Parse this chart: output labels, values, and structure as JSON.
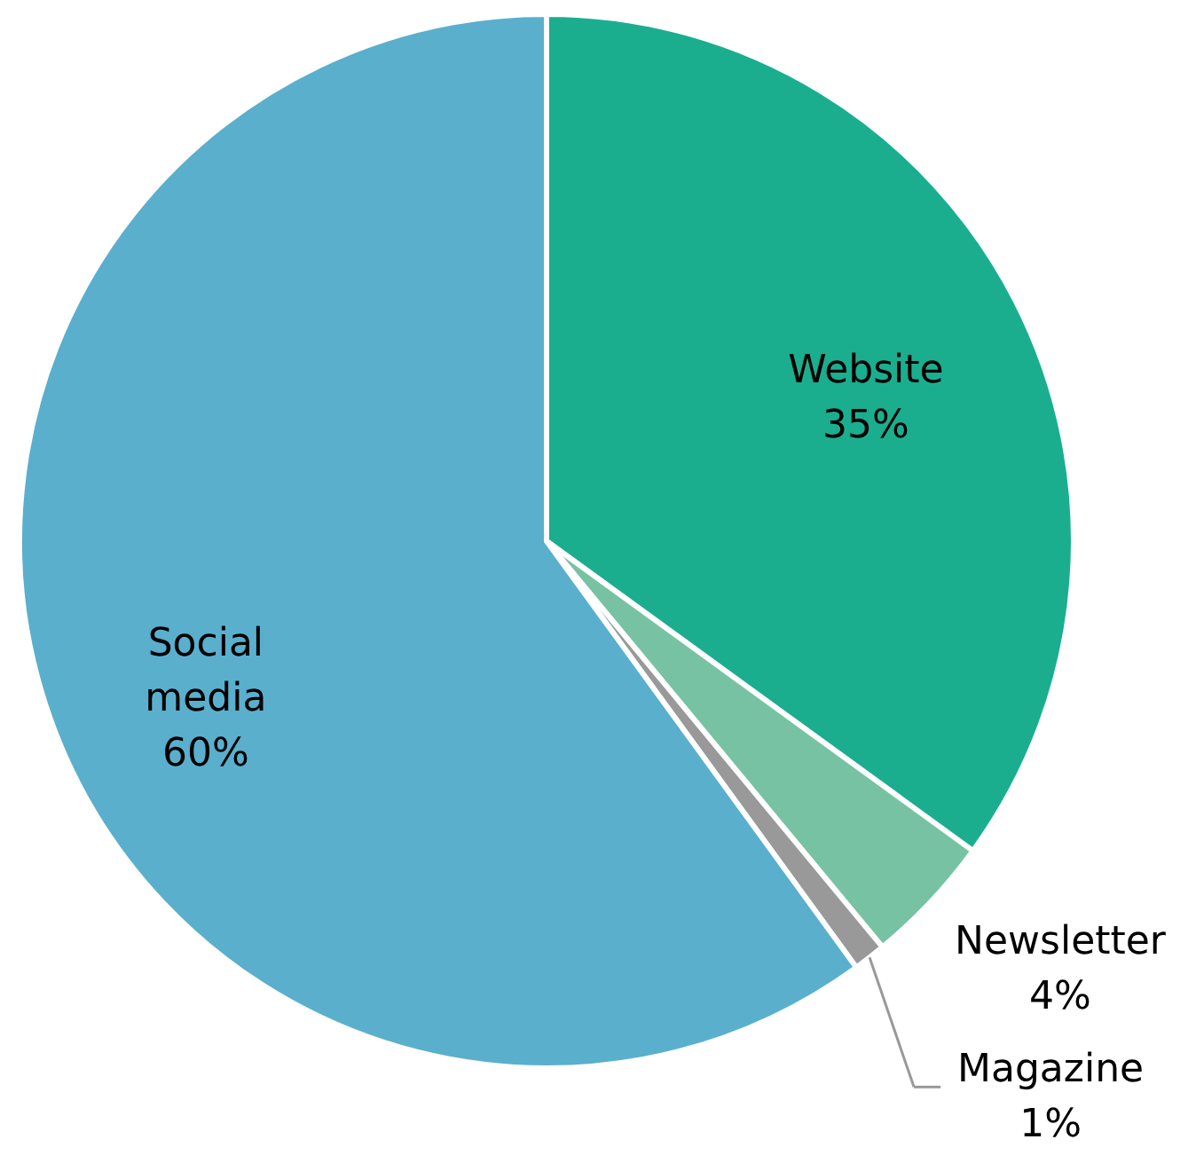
{
  "chart_data": {
    "type": "pie",
    "categories": [
      "Website",
      "Newsletter",
      "Magazine",
      "Social media"
    ],
    "values": [
      35,
      4,
      1,
      60
    ],
    "value_labels": [
      "35%",
      "4%",
      "1%",
      "60%"
    ],
    "colors": [
      "#1aae8f",
      "#78c2a4",
      "#999999",
      "#5aafcd"
    ]
  }
}
